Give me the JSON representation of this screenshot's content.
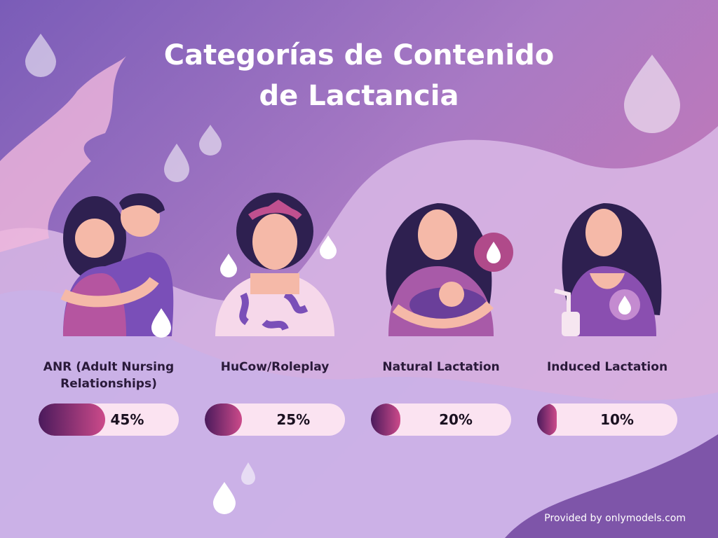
{
  "title": {
    "line1": "Categorías de Contenido",
    "line2": "de Lactancia"
  },
  "categories": [
    {
      "label": "ANR (Adult Nursing Relationships)",
      "percent_text": "45%",
      "percent": 45,
      "icon": "couple-embrace-icon"
    },
    {
      "label": "HuCow/Roleplay",
      "percent_text": "25%",
      "percent": 25,
      "icon": "woman-cow-print-icon"
    },
    {
      "label": "Natural Lactation",
      "percent_text": "20%",
      "percent": 20,
      "icon": "mother-breastfeeding-icon"
    },
    {
      "label": "Induced Lactation",
      "percent_text": "10%",
      "percent": 10,
      "icon": "woman-breast-pump-icon"
    }
  ],
  "footer": "Provided by onlymodels.com",
  "colors": {
    "bar_start": "#4a1a5c",
    "bar_end": "#cc4a8a",
    "bar_track": "#fbe3f1",
    "title": "#ffffff"
  }
}
